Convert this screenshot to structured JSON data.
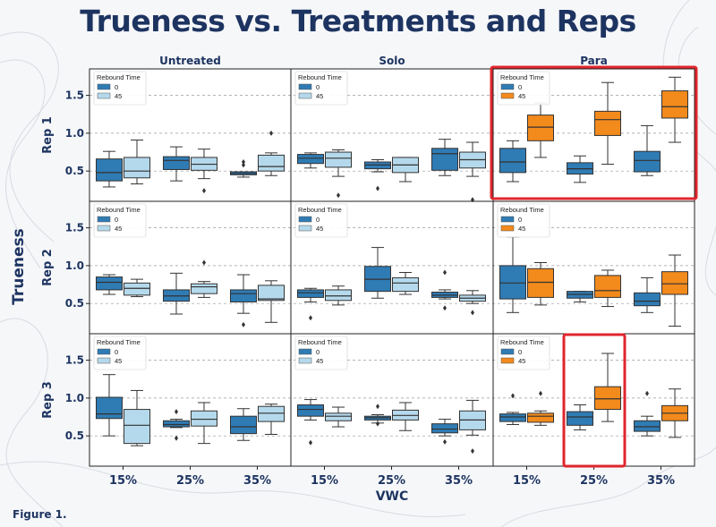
{
  "page": {
    "title": "Trueness vs. Treatments and Reps",
    "figure_label": "Figure 1."
  },
  "colors": {
    "untreated_0": "#2f7bb4",
    "untreated_45": "#b5d9ec",
    "para_0": "#2f7bb4",
    "para_45": "#f28a1c",
    "highlight": "#e0252c",
    "title": "#1d3461",
    "axis_text": "#1d3461"
  },
  "chart_data": {
    "type": "box",
    "title": "Trueness vs. Treatments and Reps",
    "xlabel": "VWC",
    "ylabel": "Trueness",
    "row_labels": [
      "Rep 1",
      "Rep 2",
      "Rep 3"
    ],
    "column_labels": [
      "Untreated",
      "Solo",
      "Para"
    ],
    "x_categories": [
      "15%",
      "25%",
      "35%"
    ],
    "y_ticks": [
      0.5,
      1.0,
      1.5
    ],
    "y_tick_labels": [
      "0.5",
      "1.0",
      "1.5"
    ],
    "ylim": [
      0.1,
      1.85
    ],
    "grid": "horizontal dashed",
    "legend": {
      "title": "Rebound Time",
      "entries": [
        "0",
        "45"
      ],
      "placement": "top-left"
    },
    "highlighted_panels": [
      {
        "row": 0,
        "col": 2,
        "scope": "panel"
      },
      {
        "row": 2,
        "col": 2,
        "scope": "box-pair",
        "category": "25%"
      }
    ],
    "panels": [
      {
        "row": 0,
        "col": 0,
        "boxes": [
          {
            "x": "15%",
            "rebound": "0",
            "min": 0.29,
            "q1": 0.37,
            "median": 0.48,
            "q3": 0.66,
            "max": 0.76,
            "outliers": []
          },
          {
            "x": "15%",
            "rebound": "45",
            "min": 0.33,
            "q1": 0.41,
            "median": 0.5,
            "q3": 0.68,
            "max": 0.91,
            "outliers": []
          },
          {
            "x": "25%",
            "rebound": "0",
            "min": 0.37,
            "q1": 0.52,
            "median": 0.64,
            "q3": 0.69,
            "max": 0.82,
            "outliers": []
          },
          {
            "x": "25%",
            "rebound": "45",
            "min": 0.4,
            "q1": 0.51,
            "median": 0.59,
            "q3": 0.68,
            "max": 0.79,
            "outliers": [
              0.24
            ]
          },
          {
            "x": "35%",
            "rebound": "0",
            "min": 0.42,
            "q1": 0.45,
            "median": 0.47,
            "q3": 0.49,
            "max": 0.49,
            "outliers": [
              0.58,
              0.62
            ]
          },
          {
            "x": "35%",
            "rebound": "45",
            "min": 0.44,
            "q1": 0.5,
            "median": 0.56,
            "q3": 0.71,
            "max": 0.74,
            "outliers": [
              1.0
            ]
          }
        ]
      },
      {
        "row": 0,
        "col": 1,
        "boxes": [
          {
            "x": "15%",
            "rebound": "0",
            "min": 0.54,
            "q1": 0.6,
            "median": 0.67,
            "q3": 0.72,
            "max": 0.74,
            "outliers": []
          },
          {
            "x": "15%",
            "rebound": "45",
            "min": 0.43,
            "q1": 0.55,
            "median": 0.67,
            "q3": 0.75,
            "max": 0.78,
            "outliers": [
              0.18
            ]
          },
          {
            "x": "25%",
            "rebound": "0",
            "min": 0.49,
            "q1": 0.53,
            "median": 0.58,
            "q3": 0.62,
            "max": 0.65,
            "outliers": [
              0.27
            ]
          },
          {
            "x": "25%",
            "rebound": "45",
            "min": 0.36,
            "q1": 0.48,
            "median": 0.58,
            "q3": 0.68,
            "max": 0.68,
            "outliers": []
          },
          {
            "x": "35%",
            "rebound": "0",
            "min": 0.44,
            "q1": 0.51,
            "median": 0.73,
            "q3": 0.8,
            "max": 0.92,
            "outliers": []
          },
          {
            "x": "35%",
            "rebound": "45",
            "min": 0.43,
            "q1": 0.54,
            "median": 0.65,
            "q3": 0.75,
            "max": 0.88,
            "outliers": [
              0.12
            ]
          }
        ]
      },
      {
        "row": 0,
        "col": 2,
        "boxes": [
          {
            "x": "15%",
            "rebound": "0",
            "min": 0.36,
            "q1": 0.48,
            "median": 0.62,
            "q3": 0.8,
            "max": 0.9,
            "outliers": []
          },
          {
            "x": "15%",
            "rebound": "45",
            "min": 0.68,
            "q1": 0.9,
            "median": 1.08,
            "q3": 1.24,
            "max": 1.4,
            "outliers": []
          },
          {
            "x": "25%",
            "rebound": "0",
            "min": 0.35,
            "q1": 0.46,
            "median": 0.53,
            "q3": 0.61,
            "max": 0.7,
            "outliers": []
          },
          {
            "x": "25%",
            "rebound": "45",
            "min": 0.59,
            "q1": 0.97,
            "median": 1.18,
            "q3": 1.29,
            "max": 1.67,
            "outliers": []
          },
          {
            "x": "35%",
            "rebound": "0",
            "min": 0.44,
            "q1": 0.49,
            "median": 0.64,
            "q3": 0.76,
            "max": 1.1,
            "outliers": []
          },
          {
            "x": "35%",
            "rebound": "45",
            "min": 0.88,
            "q1": 1.2,
            "median": 1.35,
            "q3": 1.56,
            "max": 1.74,
            "outliers": []
          }
        ]
      },
      {
        "row": 1,
        "col": 0,
        "boxes": [
          {
            "x": "15%",
            "rebound": "0",
            "min": 0.62,
            "q1": 0.68,
            "median": 0.78,
            "q3": 0.85,
            "max": 0.88,
            "outliers": []
          },
          {
            "x": "15%",
            "rebound": "45",
            "min": 0.59,
            "q1": 0.61,
            "median": 0.7,
            "q3": 0.77,
            "max": 0.82,
            "outliers": []
          },
          {
            "x": "25%",
            "rebound": "0",
            "min": 0.36,
            "q1": 0.53,
            "median": 0.6,
            "q3": 0.68,
            "max": 0.9,
            "outliers": []
          },
          {
            "x": "25%",
            "rebound": "45",
            "min": 0.58,
            "q1": 0.63,
            "median": 0.72,
            "q3": 0.76,
            "max": 0.79,
            "outliers": [
              1.04
            ]
          },
          {
            "x": "35%",
            "rebound": "0",
            "min": 0.37,
            "q1": 0.52,
            "median": 0.63,
            "q3": 0.68,
            "max": 0.88,
            "outliers": [
              0.22
            ]
          },
          {
            "x": "35%",
            "rebound": "45",
            "min": 0.25,
            "q1": 0.54,
            "median": 0.56,
            "q3": 0.74,
            "max": 0.8,
            "outliers": []
          }
        ]
      },
      {
        "row": 1,
        "col": 1,
        "boxes": [
          {
            "x": "15%",
            "rebound": "0",
            "min": 0.52,
            "q1": 0.58,
            "median": 0.64,
            "q3": 0.68,
            "max": 0.7,
            "outliers": [
              0.31
            ]
          },
          {
            "x": "15%",
            "rebound": "45",
            "min": 0.48,
            "q1": 0.54,
            "median": 0.6,
            "q3": 0.68,
            "max": 0.73,
            "outliers": []
          },
          {
            "x": "25%",
            "rebound": "0",
            "min": 0.57,
            "q1": 0.66,
            "median": 0.82,
            "q3": 0.99,
            "max": 1.24,
            "outliers": []
          },
          {
            "x": "25%",
            "rebound": "45",
            "min": 0.62,
            "q1": 0.66,
            "median": 0.77,
            "q3": 0.84,
            "max": 0.91,
            "outliers": []
          },
          {
            "x": "35%",
            "rebound": "0",
            "min": 0.56,
            "q1": 0.58,
            "median": 0.61,
            "q3": 0.65,
            "max": 0.68,
            "outliers": [
              0.91,
              0.44
            ]
          },
          {
            "x": "35%",
            "rebound": "45",
            "min": 0.5,
            "q1": 0.53,
            "median": 0.57,
            "q3": 0.61,
            "max": 0.67,
            "outliers": [
              0.38
            ]
          }
        ]
      },
      {
        "row": 1,
        "col": 2,
        "boxes": [
          {
            "x": "15%",
            "rebound": "0",
            "min": 0.38,
            "q1": 0.56,
            "median": 0.77,
            "q3": 1.0,
            "max": 1.38,
            "outliers": []
          },
          {
            "x": "15%",
            "rebound": "45",
            "min": 0.48,
            "q1": 0.58,
            "median": 0.78,
            "q3": 0.96,
            "max": 1.04,
            "outliers": []
          },
          {
            "x": "25%",
            "rebound": "0",
            "min": 0.52,
            "q1": 0.57,
            "median": 0.62,
            "q3": 0.66,
            "max": 0.66,
            "outliers": []
          },
          {
            "x": "25%",
            "rebound": "45",
            "min": 0.46,
            "q1": 0.58,
            "median": 0.67,
            "q3": 0.87,
            "max": 0.94,
            "outliers": []
          },
          {
            "x": "35%",
            "rebound": "0",
            "min": 0.38,
            "q1": 0.47,
            "median": 0.53,
            "q3": 0.64,
            "max": 0.84,
            "outliers": []
          },
          {
            "x": "35%",
            "rebound": "45",
            "min": 0.2,
            "q1": 0.62,
            "median": 0.76,
            "q3": 0.92,
            "max": 1.14,
            "outliers": []
          }
        ]
      },
      {
        "row": 2,
        "col": 0,
        "boxes": [
          {
            "x": "15%",
            "rebound": "0",
            "min": 0.5,
            "q1": 0.73,
            "median": 0.79,
            "q3": 1.01,
            "max": 1.31,
            "outliers": []
          },
          {
            "x": "15%",
            "rebound": "45",
            "min": 0.37,
            "q1": 0.4,
            "median": 0.64,
            "q3": 0.85,
            "max": 1.1,
            "outliers": []
          },
          {
            "x": "25%",
            "rebound": "0",
            "min": 0.61,
            "q1": 0.62,
            "median": 0.65,
            "q3": 0.7,
            "max": 0.72,
            "outliers": [
              0.82,
              0.47
            ]
          },
          {
            "x": "25%",
            "rebound": "45",
            "min": 0.4,
            "q1": 0.63,
            "median": 0.72,
            "q3": 0.83,
            "max": 0.94,
            "outliers": []
          },
          {
            "x": "35%",
            "rebound": "0",
            "min": 0.44,
            "q1": 0.53,
            "median": 0.62,
            "q3": 0.76,
            "max": 0.86,
            "outliers": []
          },
          {
            "x": "35%",
            "rebound": "45",
            "min": 0.52,
            "q1": 0.69,
            "median": 0.8,
            "q3": 0.89,
            "max": 0.92,
            "outliers": []
          }
        ]
      },
      {
        "row": 2,
        "col": 1,
        "boxes": [
          {
            "x": "15%",
            "rebound": "0",
            "min": 0.71,
            "q1": 0.76,
            "median": 0.85,
            "q3": 0.91,
            "max": 0.98,
            "outliers": [
              0.41
            ]
          },
          {
            "x": "15%",
            "rebound": "45",
            "min": 0.62,
            "q1": 0.7,
            "median": 0.76,
            "q3": 0.8,
            "max": 0.88,
            "outliers": []
          },
          {
            "x": "25%",
            "rebound": "0",
            "min": 0.67,
            "q1": 0.71,
            "median": 0.74,
            "q3": 0.76,
            "max": 0.78,
            "outliers": [
              0.89,
              0.66
            ]
          },
          {
            "x": "25%",
            "rebound": "45",
            "min": 0.57,
            "q1": 0.71,
            "median": 0.77,
            "q3": 0.84,
            "max": 0.94,
            "outliers": []
          },
          {
            "x": "35%",
            "rebound": "0",
            "min": 0.5,
            "q1": 0.54,
            "median": 0.59,
            "q3": 0.66,
            "max": 0.72,
            "outliers": [
              0.42
            ]
          },
          {
            "x": "35%",
            "rebound": "45",
            "min": 0.51,
            "q1": 0.58,
            "median": 0.71,
            "q3": 0.83,
            "max": 0.97,
            "outliers": [
              0.3
            ]
          }
        ]
      },
      {
        "row": 2,
        "col": 2,
        "boxes": [
          {
            "x": "15%",
            "rebound": "0",
            "min": 0.65,
            "q1": 0.69,
            "median": 0.75,
            "q3": 0.79,
            "max": 0.81,
            "outliers": [
              1.03
            ]
          },
          {
            "x": "15%",
            "rebound": "45",
            "min": 0.64,
            "q1": 0.68,
            "median": 0.76,
            "q3": 0.8,
            "max": 0.83,
            "outliers": [
              1.06
            ]
          },
          {
            "x": "25%",
            "rebound": "0",
            "min": 0.58,
            "q1": 0.64,
            "median": 0.75,
            "q3": 0.82,
            "max": 0.91,
            "outliers": []
          },
          {
            "x": "25%",
            "rebound": "45",
            "min": 0.69,
            "q1": 0.85,
            "median": 0.99,
            "q3": 1.15,
            "max": 1.59,
            "outliers": []
          },
          {
            "x": "35%",
            "rebound": "0",
            "min": 0.5,
            "q1": 0.56,
            "median": 0.62,
            "q3": 0.7,
            "max": 0.76,
            "outliers": [
              1.06
            ]
          },
          {
            "x": "35%",
            "rebound": "45",
            "min": 0.48,
            "q1": 0.7,
            "median": 0.8,
            "q3": 0.9,
            "max": 1.12,
            "outliers": []
          }
        ]
      }
    ]
  }
}
